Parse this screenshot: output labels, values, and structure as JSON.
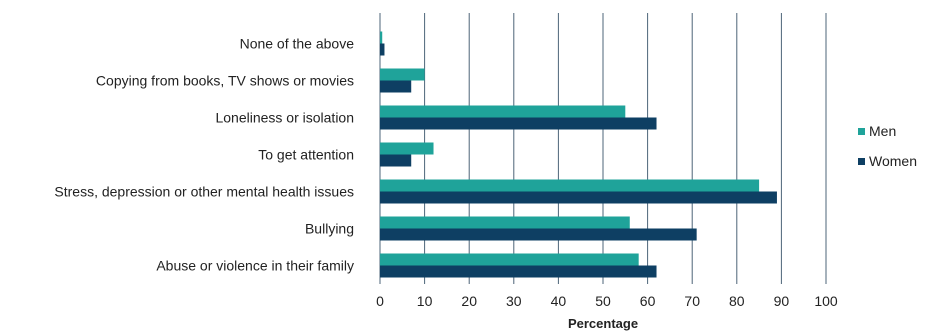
{
  "chart_data": {
    "type": "bar",
    "orientation": "horizontal",
    "categories": [
      "None of the above",
      "Copying from books, TV shows or movies",
      "Loneliness or isolation",
      "To get attention",
      "Stress, depression or other mental health issues",
      "Bullying",
      "Abuse or violence in their family"
    ],
    "series": [
      {
        "name": "Men",
        "color": "#1fa39a",
        "values": [
          0.5,
          10,
          55,
          12,
          85,
          56,
          58
        ]
      },
      {
        "name": "Women",
        "color": "#0e3f63",
        "values": [
          1,
          7,
          62,
          7,
          89,
          71,
          62
        ]
      }
    ],
    "xlabel": "Percentage",
    "ylabel": "",
    "xlim": [
      0,
      100
    ],
    "xticks": [
      "0",
      "10",
      "20",
      "30",
      "40",
      "50",
      "60",
      "70",
      "80",
      "90",
      "100"
    ],
    "grid": "vertical",
    "legend": "right"
  }
}
